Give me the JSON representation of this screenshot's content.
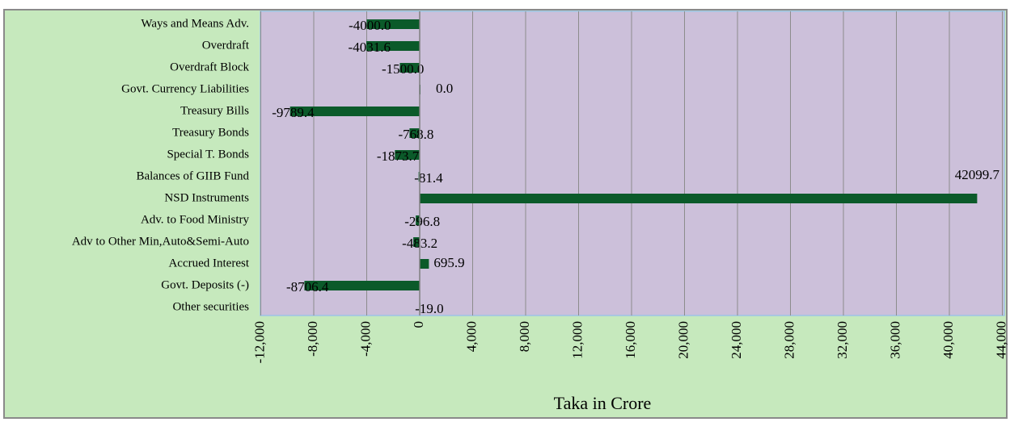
{
  "chart_data": {
    "type": "hbar",
    "x_label": "Taka in Crore",
    "categories": [
      "Ways and Means Adv.",
      "Overdraft",
      "Overdraft Block",
      "Govt. Currency Liabilities",
      "Treasury Bills",
      "Treasury Bonds",
      "Special T. Bonds",
      "Balances of GIIB Fund",
      "NSD Instruments",
      "Adv. to Food Ministry",
      "Adv to Other Min,Auto&Semi-Auto",
      "Accrued Interest",
      "Govt. Deposits (-)",
      "Other securities"
    ],
    "values": [
      -4000,
      -4031.6,
      -1500,
      0,
      -9789.4,
      -768.8,
      -1873.7,
      -81.4,
      42099.7,
      -296.8,
      -483.2,
      695.9,
      -8706.4,
      -19
    ],
    "value_labels": [
      "-4000.0",
      "-4031.6",
      "-1500.0",
      "0.0",
      "-9789.4",
      "-768.8",
      "-1873.7",
      "-81.4",
      "42099.7",
      "-296.8",
      "-483.2",
      "695.9",
      "-8706.4",
      "-19.0"
    ],
    "color": "#0b5a2a",
    "xlim": [
      -12000,
      44000
    ],
    "xticks": [
      {
        "value": -12000,
        "label": "-12,000"
      },
      {
        "value": -8000,
        "label": "-8,000"
      },
      {
        "value": -4000,
        "label": "-4,000"
      },
      0,
      {
        "value": 4000,
        "label": "4,000"
      },
      {
        "value": 8000,
        "label": "8,000"
      },
      {
        "value": 12000,
        "label": "12,000"
      },
      {
        "value": 16000,
        "label": "16,000"
      },
      {
        "value": 20000,
        "label": "20,000"
      },
      {
        "value": 24000,
        "label": "24,000"
      },
      {
        "value": 28000,
        "label": "28,000"
      },
      {
        "value": 32000,
        "label": "32,000"
      },
      {
        "value": 36000,
        "label": "36,000"
      },
      {
        "value": 40000,
        "label": "40,000"
      },
      {
        "value": 44000,
        "label": "44,000"
      }
    ],
    "grid": true
  }
}
